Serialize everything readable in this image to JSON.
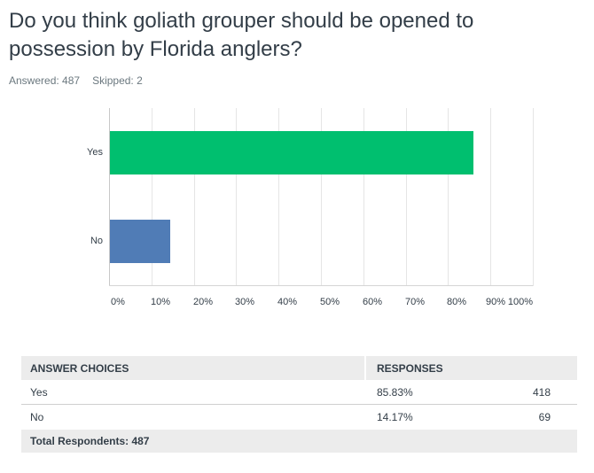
{
  "question": {
    "title": "Do you think goliath grouper should be opened to possession by Florida anglers?",
    "answered_label": "Answered: 487",
    "skipped_label": "Skipped: 2"
  },
  "colors": {
    "yes_bar": "#00bf6f",
    "no_bar": "#507cb6"
  },
  "chart_data": {
    "type": "bar",
    "orientation": "horizontal",
    "title": "Do you think goliath grouper should be opened to possession by Florida anglers?",
    "categories": [
      "Yes",
      "No"
    ],
    "values": [
      85.83,
      14.17
    ],
    "xlabel": "",
    "ylabel": "",
    "xlim": [
      0,
      100
    ],
    "x_ticks": [
      "0%",
      "10%",
      "20%",
      "30%",
      "40%",
      "50%",
      "60%",
      "70%",
      "80%",
      "90%",
      "100%"
    ],
    "grid": true,
    "legend": null,
    "bar_colors": [
      "#00bf6f",
      "#507cb6"
    ]
  },
  "table": {
    "headers": {
      "choice": "ANSWER CHOICES",
      "responses": "RESPONSES"
    },
    "rows": [
      {
        "choice": "Yes",
        "percent": "85.83%",
        "count": "418"
      },
      {
        "choice": "No",
        "percent": "14.17%",
        "count": "69"
      }
    ],
    "footer": "Total Respondents: 487"
  }
}
